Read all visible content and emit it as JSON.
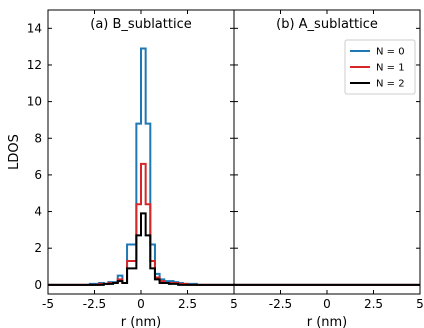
{
  "chart_data": {
    "type": "line",
    "ylabel": "LDOS",
    "ylim": [
      -0.5,
      15
    ],
    "yticks": [
      0,
      2,
      4,
      6,
      8,
      10,
      12,
      14
    ],
    "grid": false,
    "panels": [
      {
        "title": "(a) B_sublattice",
        "xlabel": "r (nm)",
        "xlim": [
          -5,
          5
        ],
        "xticks": [
          -5,
          -2.5,
          0,
          2.5,
          5
        ],
        "xtick_labels": [
          "-5",
          "-2.5",
          "0",
          "2.5",
          "5"
        ],
        "step": true,
        "series": [
          {
            "name": "N = 0",
            "color": "#1f77b4",
            "x": [
              -5,
              -4.75,
              -4.5,
              -4.25,
              -4,
              -3.75,
              -3.5,
              -3.25,
              -3,
              -2.75,
              -2.5,
              -2.25,
              -2,
              -1.75,
              -1.5,
              -1.25,
              -1,
              -0.75,
              -0.5,
              -0.25,
              0,
              0.25,
              0.5,
              0.75,
              1,
              1.25,
              1.5,
              1.75,
              2,
              2.25,
              2.5,
              2.75,
              3,
              3.25,
              3.5,
              3.75,
              4,
              4.25,
              4.5,
              4.75
            ],
            "values": [
              0,
              0,
              0,
              0,
              0,
              0,
              0,
              0,
              0,
              0.05,
              0.05,
              0.1,
              0.05,
              0.15,
              0.15,
              0.5,
              0.1,
              2.2,
              2.2,
              8.8,
              12.9,
              8.8,
              2.2,
              0.6,
              0.3,
              0.2,
              0.2,
              0.15,
              0.1,
              0.05,
              0.05,
              0.05,
              0,
              0,
              0,
              0,
              0,
              0,
              0,
              0
            ]
          },
          {
            "name": "N = 1",
            "color": "#d62728",
            "x": [
              -5,
              -4.75,
              -4.5,
              -4.25,
              -4,
              -3.75,
              -3.5,
              -3.25,
              -3,
              -2.75,
              -2.5,
              -2.25,
              -2,
              -1.75,
              -1.5,
              -1.25,
              -1,
              -0.75,
              -0.5,
              -0.25,
              0,
              0.25,
              0.5,
              0.75,
              1,
              1.25,
              1.5,
              1.75,
              2,
              2.25,
              2.5,
              2.75,
              3,
              3.25,
              3.5,
              3.75,
              4,
              4.25,
              4.5,
              4.75
            ],
            "values": [
              0,
              0,
              0,
              0,
              0,
              0,
              0,
              0,
              0,
              0,
              0,
              0.05,
              0.05,
              0.1,
              0.1,
              0.3,
              0.1,
              1.3,
              1.3,
              4.4,
              6.6,
              4.4,
              1.3,
              0.4,
              0.2,
              0.1,
              0.1,
              0.1,
              0.05,
              0.05,
              0,
              0,
              0,
              0,
              0,
              0,
              0,
              0,
              0,
              0
            ]
          },
          {
            "name": "N = 2",
            "color": "#000000",
            "x": [
              -5,
              -4.75,
              -4.5,
              -4.25,
              -4,
              -3.75,
              -3.5,
              -3.25,
              -3,
              -2.75,
              -2.5,
              -2.25,
              -2,
              -1.75,
              -1.5,
              -1.25,
              -1,
              -0.75,
              -0.5,
              -0.25,
              0,
              0.25,
              0.5,
              0.75,
              1,
              1.25,
              1.5,
              1.75,
              2,
              2.25,
              2.5,
              2.75,
              3,
              3.25,
              3.5,
              3.75,
              4,
              4.25,
              4.5,
              4.75
            ],
            "values": [
              0,
              0,
              0,
              0,
              0,
              0,
              0,
              0,
              0,
              0,
              0,
              0,
              0.05,
              0.05,
              0.1,
              0.2,
              0.1,
              0.9,
              0.9,
              2.7,
              3.9,
              2.7,
              0.9,
              0.3,
              0.1,
              0.1,
              0.05,
              0.05,
              0,
              0,
              0,
              0,
              0,
              0,
              0,
              0,
              0,
              0,
              0,
              0
            ]
          }
        ]
      },
      {
        "title": "(b) A_sublattice",
        "xlabel": "r (nm)",
        "xlim": [
          -5,
          5
        ],
        "xticks": [
          -5,
          -2.5,
          0,
          2.5,
          5
        ],
        "xtick_labels": [
          "",
          "-2.5",
          "0",
          "2.5",
          "5"
        ],
        "step": false,
        "legend": {
          "placement": "top-right"
        },
        "series": [
          {
            "name": "N = 0",
            "color": "#1f77b4",
            "x": [
              -5,
              -4,
              -3,
              -2,
              -1,
              0,
              1,
              2,
              3,
              4,
              5
            ],
            "values": [
              0,
              0,
              0,
              0,
              0,
              0,
              0,
              0,
              0,
              0,
              0
            ]
          },
          {
            "name": "N = 1",
            "color": "#d62728",
            "x": [
              -5,
              -4,
              -3,
              -2,
              -1,
              0,
              1,
              2,
              3,
              4,
              5
            ],
            "values": [
              0,
              0,
              0,
              0,
              0,
              0,
              0,
              0,
              0,
              0,
              0
            ]
          },
          {
            "name": "N = 2",
            "color": "#000000",
            "x": [
              -5,
              -4,
              -3,
              -2,
              -1,
              0,
              1,
              2,
              3,
              4,
              5
            ],
            "values": [
              0,
              0,
              0,
              0,
              0,
              0,
              0,
              0,
              0,
              0,
              0
            ]
          }
        ]
      }
    ]
  }
}
